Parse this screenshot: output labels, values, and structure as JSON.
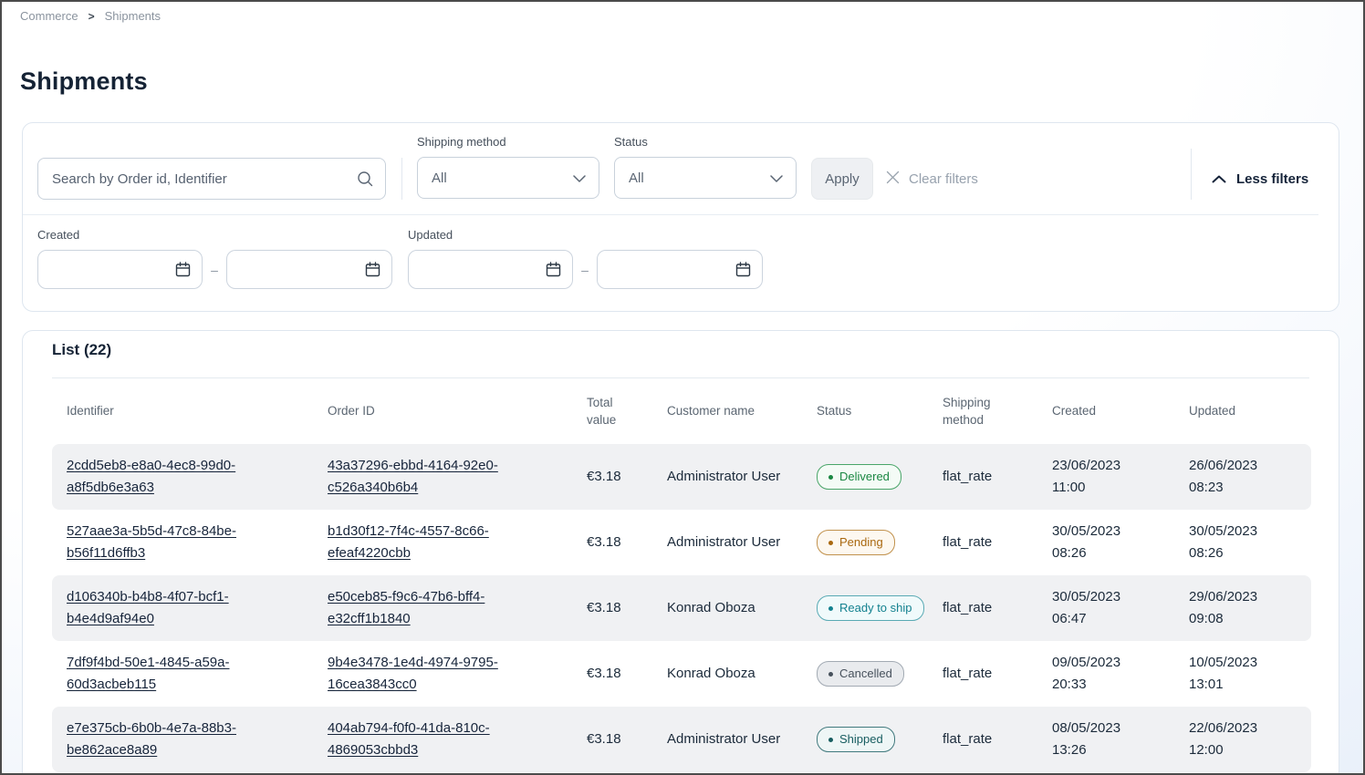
{
  "breadcrumb": {
    "items": [
      "Commerce",
      "Shipments"
    ],
    "separator": ">"
  },
  "page": {
    "title": "Shipments"
  },
  "filters": {
    "search_placeholder": "Search by Order id, Identifier",
    "shipping_method": {
      "label": "Shipping method",
      "value": "All"
    },
    "status": {
      "label": "Status",
      "value": "All"
    },
    "apply_label": "Apply",
    "clear_label": "Clear filters",
    "toggle_label": "Less filters",
    "created_label": "Created",
    "updated_label": "Updated",
    "date_separator": "–",
    "date_values": {
      "created_from": "",
      "created_to": "",
      "updated_from": "",
      "updated_to": ""
    }
  },
  "icons": {
    "search": "magnifier",
    "select": "chevron-down",
    "clear": "x-mark",
    "toggle": "chevron-up",
    "date": "calendar"
  },
  "colors": {
    "title_text": "#152335",
    "muted_text": "#5b6672",
    "row_stripe_bg": "#f0f1f3",
    "panel_border": "#dee6ef",
    "page_gradient_edge": "#e9f0fa"
  },
  "list": {
    "title": "List (22)",
    "columns": [
      "Identifier",
      "Order ID",
      "Total value",
      "Customer name",
      "Status",
      "Shipping method",
      "Created",
      "Updated"
    ],
    "status_styles": {
      "Delivered": {
        "text": "#1a8742",
        "border": "#49a568",
        "bg": "#f4fbf6"
      },
      "Pending": {
        "text": "#a9680f",
        "border": "#c1914c",
        "bg": "#fdf8f0"
      },
      "Ready to ship": {
        "text": "#13818f",
        "border": "#59aab4",
        "bg": "#f0fafb"
      },
      "Cancelled": {
        "text": "#47515c",
        "border": "#a2aab3",
        "bg": "#e9ebee"
      },
      "Shipped": {
        "text": "#175d60",
        "border": "#41797d",
        "bg": "#eef6f6"
      }
    },
    "rows": [
      {
        "identifier": "2cdd5eb8-e8a0-4ec8-99d0-a8f5db6e3a63",
        "order_id": "43a37296-ebbd-4164-92e0-c526a340b6b4",
        "total_value": "€3.18",
        "customer_name": "Administrator User",
        "status": "Delivered",
        "shipping_method": "flat_rate",
        "created_date": "23/06/2023",
        "created_time": "11:00",
        "updated_date": "26/06/2023",
        "updated_time": "08:23"
      },
      {
        "identifier": "527aae3a-5b5d-47c8-84be-b56f11d6ffb3",
        "order_id": "b1d30f12-7f4c-4557-8c66-efeaf4220cbb",
        "total_value": "€3.18",
        "customer_name": "Administrator User",
        "status": "Pending",
        "shipping_method": "flat_rate",
        "created_date": "30/05/2023",
        "created_time": "08:26",
        "updated_date": "30/05/2023",
        "updated_time": "08:26"
      },
      {
        "identifier": "d106340b-b4b8-4f07-bcf1-b4e4d9af94e0",
        "order_id": "e50ceb85-f9c6-47b6-bff4-e32cff1b1840",
        "total_value": "€3.18",
        "customer_name": "Konrad Oboza",
        "status": "Ready to ship",
        "shipping_method": "flat_rate",
        "created_date": "30/05/2023",
        "created_time": "06:47",
        "updated_date": "29/06/2023",
        "updated_time": "09:08"
      },
      {
        "identifier": "7df9f4bd-50e1-4845-a59a-60d3acbeb115",
        "order_id": "9b4e3478-1e4d-4974-9795-16cea3843cc0",
        "total_value": "€3.18",
        "customer_name": "Konrad Oboza",
        "status": "Cancelled",
        "shipping_method": "flat_rate",
        "created_date": "09/05/2023",
        "created_time": "20:33",
        "updated_date": "10/05/2023",
        "updated_time": "13:01"
      },
      {
        "identifier": "e7e375cb-6b0b-4e7a-88b3-be862ace8a89",
        "order_id": "404ab794-f0f0-41da-810c-4869053cbbd3",
        "total_value": "€3.18",
        "customer_name": "Administrator User",
        "status": "Shipped",
        "shipping_method": "flat_rate",
        "created_date": "08/05/2023",
        "created_time": "13:26",
        "updated_date": "22/06/2023",
        "updated_time": "12:00"
      }
    ]
  }
}
